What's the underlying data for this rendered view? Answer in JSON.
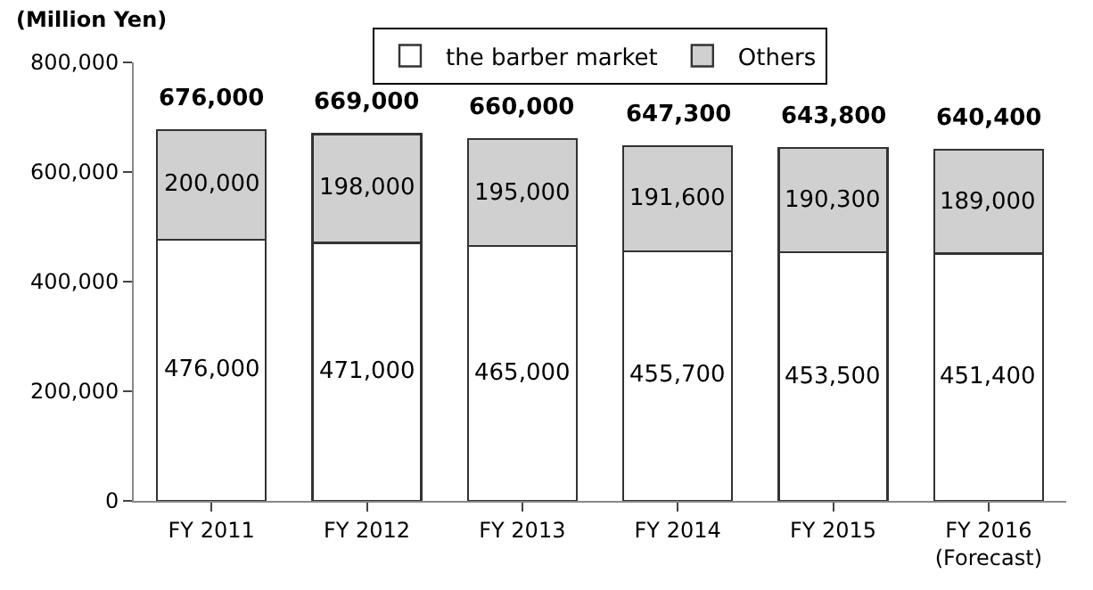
{
  "chart_data": {
    "type": "bar",
    "stacked": true,
    "ylabel": "(Million Yen)",
    "categories": [
      "FY 2011",
      "FY 2012",
      "FY 2013",
      "FY 2014",
      "FY 2015",
      "FY 2016\n(Forecast)"
    ],
    "series": [
      {
        "name": "the barber market",
        "color": "#ffffff",
        "values": [
          476000,
          471000,
          465000,
          455700,
          453500,
          451400
        ],
        "value_labels": [
          "476,000",
          "471,000",
          "465,000",
          "455,700",
          "453,500",
          "451,400"
        ]
      },
      {
        "name": "Others",
        "color": "#d0d0d0",
        "values": [
          200000,
          198000,
          195000,
          191600,
          190300,
          189000
        ],
        "value_labels": [
          "200,000",
          "198,000",
          "195,000",
          "191,600",
          "190,300",
          "189,000"
        ]
      }
    ],
    "totals": [
      "676,000",
      "669,000",
      "660,000",
      "647,300",
      "643,800",
      "640,400"
    ],
    "ylim": [
      0,
      800000
    ],
    "yticks": [
      {
        "value": 0,
        "label": "0"
      },
      {
        "value": 200000,
        "label": "200,000"
      },
      {
        "value": 400000,
        "label": "400,000"
      },
      {
        "value": 600000,
        "label": "600,000"
      },
      {
        "value": 800000,
        "label": "800,000"
      }
    ],
    "legend": "top"
  }
}
